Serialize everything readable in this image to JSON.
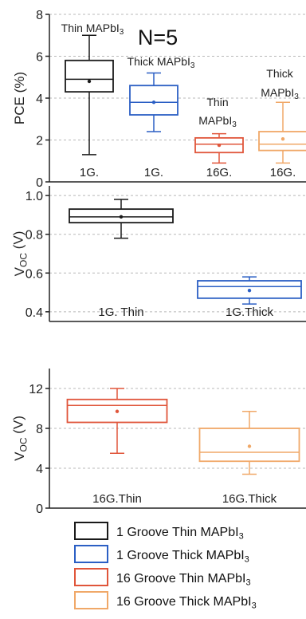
{
  "chart_data": [
    {
      "type": "box",
      "annotation": "N=5",
      "ylabel": "PCE (%)",
      "ylim": [
        0,
        8
      ],
      "yticks": [
        0,
        2,
        4,
        6,
        8
      ],
      "grid": "horizontal dashed",
      "series": [
        {
          "label_lines": [
            "Thin MAPbI3"
          ],
          "category": "1G.",
          "min": 1.3,
          "q1": 4.3,
          "median": 4.9,
          "q3": 5.8,
          "max": 7.0,
          "mean": 4.8,
          "color": "#1a1a1a"
        },
        {
          "label_lines": [
            "Thick MAPbI3"
          ],
          "category": "1G.",
          "min": 2.4,
          "q1": 3.2,
          "median": 3.8,
          "q3": 4.6,
          "max": 5.2,
          "mean": 3.8,
          "color": "#2b5fc4"
        },
        {
          "label_lines": [
            "Thin",
            "MAPbI3"
          ],
          "category": "16G.",
          "min": 0.9,
          "q1": 1.4,
          "median": 1.8,
          "q3": 2.1,
          "max": 2.3,
          "mean": 1.75,
          "color": "#e0553a"
        },
        {
          "label_lines": [
            "Thick",
            "MAPbI3"
          ],
          "category": "16G.",
          "min": 0.9,
          "q1": 1.5,
          "median": 1.8,
          "q3": 2.4,
          "max": 3.8,
          "mean": 2.05,
          "color": "#f0a868"
        }
      ]
    },
    {
      "type": "box",
      "ylabel": "VOC (V)",
      "ylim": [
        0.35,
        1.05
      ],
      "yticks": [
        0.4,
        0.6,
        0.8,
        1.0
      ],
      "ytick_labels": [
        "0.4",
        "0.6",
        "0.8",
        "1.0"
      ],
      "grid": "horizontal dashed",
      "series": [
        {
          "category": "1G. Thin",
          "min": 0.78,
          "q1": 0.86,
          "median": 0.89,
          "q3": 0.93,
          "max": 0.98,
          "mean": 0.89,
          "color": "#1a1a1a"
        },
        {
          "category": "1G.Thick",
          "min": 0.44,
          "q1": 0.47,
          "median": 0.53,
          "q3": 0.56,
          "max": 0.58,
          "mean": 0.51,
          "color": "#2b5fc4"
        }
      ]
    },
    {
      "type": "box",
      "ylabel": "VOC (V)",
      "ylim": [
        0,
        14
      ],
      "yticks": [
        0,
        4,
        8,
        12
      ],
      "grid": "horizontal dashed",
      "series": [
        {
          "category": "16G.Thin",
          "min": 5.5,
          "q1": 8.6,
          "median": 10.3,
          "q3": 10.9,
          "max": 12.0,
          "mean": 9.7,
          "color": "#e0553a"
        },
        {
          "category": "16G.Thick",
          "min": 3.4,
          "q1": 4.7,
          "median": 5.6,
          "q3": 8.0,
          "max": 9.7,
          "mean": 6.2,
          "color": "#f0a868"
        }
      ]
    }
  ],
  "legend": {
    "position": "bottom",
    "entries": [
      {
        "text": "1 Groove Thin MAPbI3",
        "color": "#1a1a1a"
      },
      {
        "text": "1 Groove Thick MAPbI3",
        "color": "#2b5fc4"
      },
      {
        "text": "16 Groove Thin MAPbI3",
        "color": "#e0553a"
      },
      {
        "text": "16 Groove Thick MAPbI3",
        "color": "#f0a868"
      }
    ]
  }
}
